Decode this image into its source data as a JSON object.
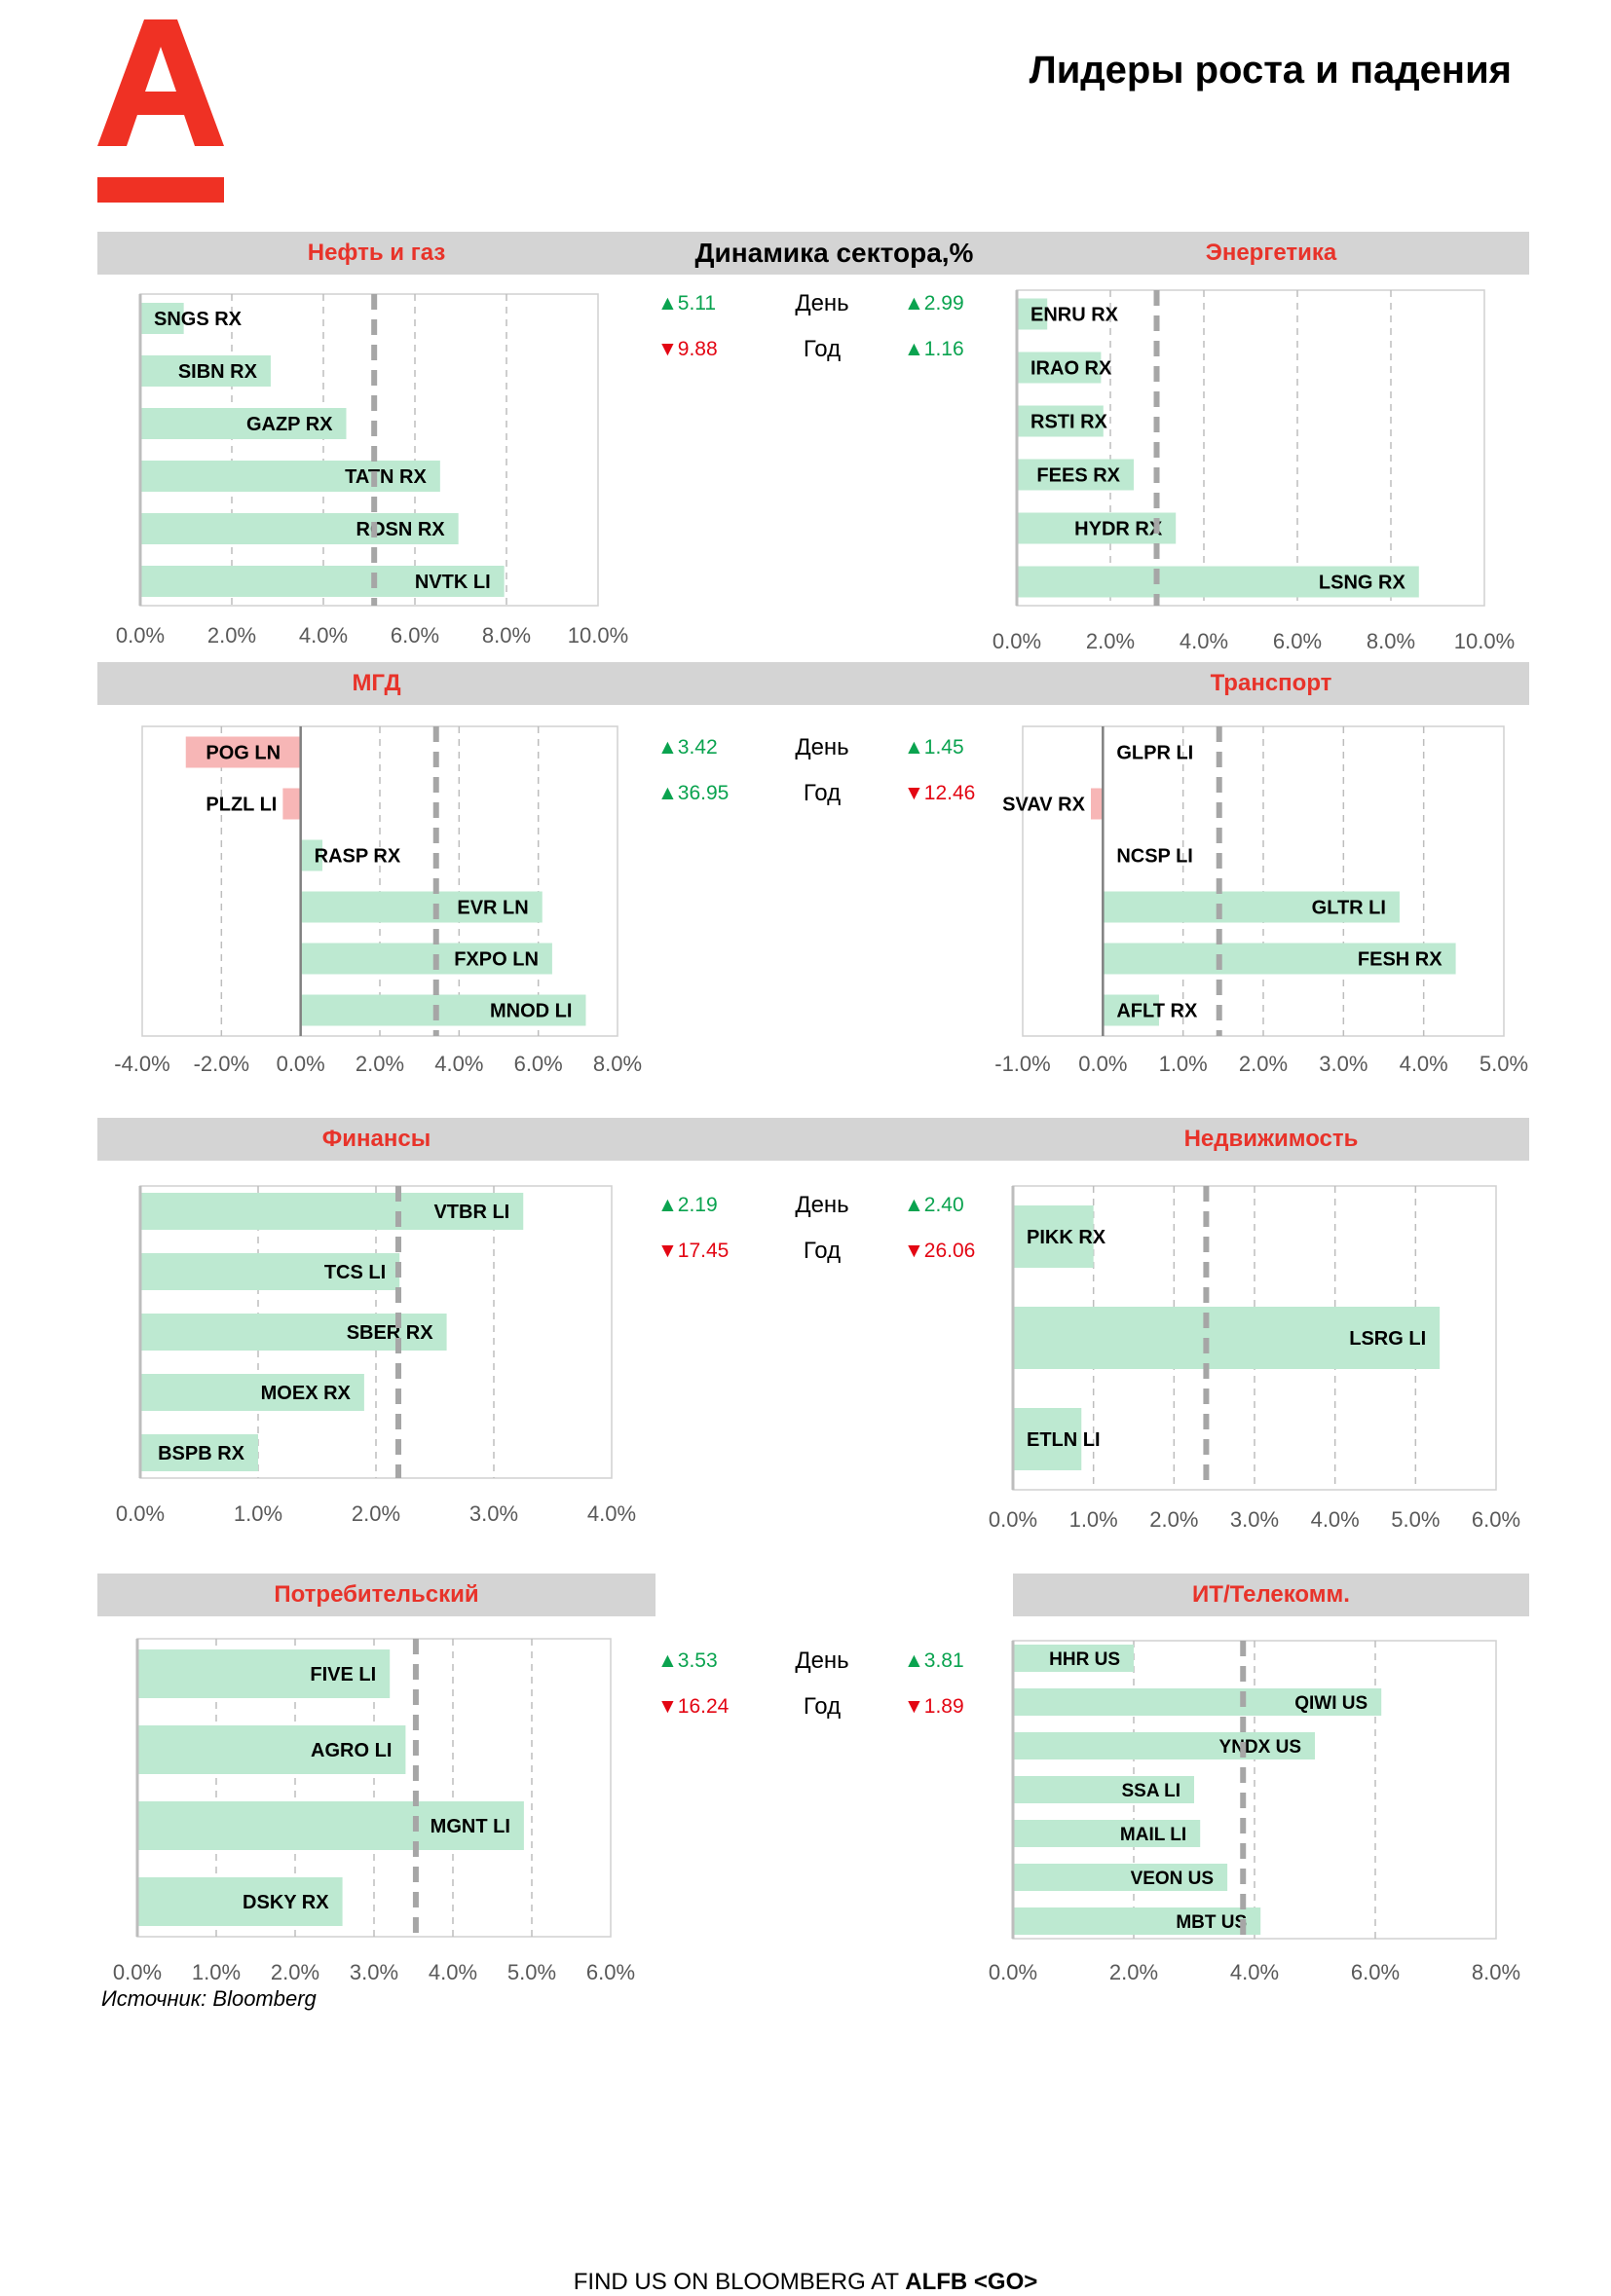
{
  "page_title": "Лидеры роста и падения",
  "dynamics_title": "Динамика сектора,%",
  "source": "Источник: Bloomberg",
  "footer": {
    "prefix": "FIND US ON BLOOMBERG AT ",
    "code": "ALFB <GO>"
  },
  "colors": {
    "brand": "#EF3124",
    "positive_bar": "#bde9d1",
    "negative_bar": "#f7b6b6",
    "up": "#0aa34f",
    "down": "#e30613",
    "band": "#d4d4d4"
  },
  "rows": [
    {
      "dynamics": {
        "day_label": "День",
        "year_label": "Год",
        "left_day": {
          "dir": "up",
          "value": "5.11"
        },
        "left_year": {
          "dir": "down",
          "value": "9.88"
        },
        "right_day": {
          "dir": "up",
          "value": "2.99"
        },
        "right_year": {
          "dir": "up",
          "value": "1.16"
        }
      }
    },
    {
      "dynamics": {
        "day_label": "День",
        "year_label": "Год",
        "left_day": {
          "dir": "up",
          "value": "3.42"
        },
        "left_year": {
          "dir": "up",
          "value": "36.95"
        },
        "right_day": {
          "dir": "up",
          "value": "1.45"
        },
        "right_year": {
          "dir": "down",
          "value": "12.46"
        }
      }
    },
    {
      "dynamics": {
        "day_label": "День",
        "year_label": "Год",
        "left_day": {
          "dir": "up",
          "value": "2.19"
        },
        "left_year": {
          "dir": "down",
          "value": "17.45"
        },
        "right_day": {
          "dir": "up",
          "value": "2.40"
        },
        "right_year": {
          "dir": "down",
          "value": "26.06"
        }
      }
    },
    {
      "dynamics": {
        "day_label": "День",
        "year_label": "Год",
        "left_day": {
          "dir": "up",
          "value": "3.53"
        },
        "left_year": {
          "dir": "down",
          "value": "16.24"
        },
        "right_day": {
          "dir": "up",
          "value": "3.81"
        },
        "right_year": {
          "dir": "down",
          "value": "1.89"
        }
      }
    }
  ],
  "chart_data": [
    {
      "type": "bar",
      "orientation": "horizontal",
      "title": "Нефть и газ",
      "categories": [
        "SNGS RX",
        "SIBN RX",
        "GAZP RX",
        "TATN RX",
        "ROSN RX",
        "NVTK LI"
      ],
      "values": [
        0.95,
        2.85,
        4.5,
        6.55,
        6.95,
        7.95
      ],
      "xlim": [
        0,
        10
      ],
      "ticks": [
        0,
        2,
        4,
        6,
        8,
        10
      ],
      "tick_labels": [
        "0.0%",
        "2.0%",
        "4.0%",
        "6.0%",
        "8.0%",
        "10.0%"
      ],
      "reference": 5.11,
      "grid": true
    },
    {
      "type": "bar",
      "orientation": "horizontal",
      "title": "Энергетика",
      "categories": [
        "ENRU RX",
        "IRAO RX",
        "RSTI RX",
        "FEES RX",
        "HYDR RX",
        "LSNG RX"
      ],
      "values": [
        0.65,
        1.8,
        1.85,
        2.5,
        3.4,
        8.6
      ],
      "xlim": [
        0,
        10
      ],
      "ticks": [
        0,
        2,
        4,
        6,
        8,
        10
      ],
      "tick_labels": [
        "0.0%",
        "2.0%",
        "4.0%",
        "6.0%",
        "8.0%",
        "10.0%"
      ],
      "reference": 2.99,
      "grid": true
    },
    {
      "type": "bar",
      "orientation": "horizontal",
      "title": "МГД",
      "categories": [
        "POG LN",
        "PLZL LI",
        "RASP RX",
        "EVR LN",
        "FXPO LN",
        "MNOD LI"
      ],
      "values": [
        -2.9,
        -0.45,
        0.55,
        6.1,
        6.35,
        7.2
      ],
      "xlim": [
        -4,
        8
      ],
      "ticks": [
        -4,
        -2,
        0,
        2,
        4,
        6,
        8
      ],
      "tick_labels": [
        "-4.0%",
        "-2.0%",
        "0.0%",
        "2.0%",
        "4.0%",
        "6.0%",
        "8.0%"
      ],
      "reference": 3.42,
      "grid": true
    },
    {
      "type": "bar",
      "orientation": "horizontal",
      "title": "Транспорт",
      "categories": [
        "GLPR LI",
        "SVAV RX",
        "NCSP LI",
        "GLTR LI",
        "FESH RX",
        "AFLT RX"
      ],
      "values": [
        0,
        -0.15,
        0,
        3.7,
        4.4,
        0.7
      ],
      "xlim": [
        -1,
        5
      ],
      "ticks": [
        -1,
        0,
        1,
        2,
        3,
        4,
        5
      ],
      "tick_labels": [
        "-1.0%",
        "0.0%",
        "1.0%",
        "2.0%",
        "3.0%",
        "4.0%",
        "5.0%"
      ],
      "reference": 1.45,
      "grid": true
    },
    {
      "type": "bar",
      "orientation": "horizontal",
      "title": "Финансы",
      "categories": [
        "VTBR LI",
        "TCS LI",
        "SBER RX",
        "MOEX RX",
        "BSPB RX"
      ],
      "values": [
        3.25,
        2.2,
        2.6,
        1.9,
        1.0
      ],
      "xlim": [
        0,
        4
      ],
      "ticks": [
        0,
        1,
        2,
        3,
        4
      ],
      "tick_labels": [
        "0.0%",
        "1.0%",
        "2.0%",
        "3.0%",
        "4.0%"
      ],
      "reference": 2.19,
      "grid": true
    },
    {
      "type": "bar",
      "orientation": "horizontal",
      "title": "Недвижимость",
      "categories": [
        "PIKK RX",
        "LSRG LI",
        "ETLN LI"
      ],
      "values": [
        1.0,
        5.3,
        0.85
      ],
      "xlim": [
        0,
        6
      ],
      "ticks": [
        0,
        1,
        2,
        3,
        4,
        5,
        6
      ],
      "tick_labels": [
        "0.0%",
        "1.0%",
        "2.0%",
        "3.0%",
        "4.0%",
        "5.0%",
        "6.0%"
      ],
      "reference": 2.4,
      "grid": true
    },
    {
      "type": "bar",
      "orientation": "horizontal",
      "title": "Потребительский",
      "categories": [
        "FIVE LI",
        "AGRO LI",
        "MGNT LI",
        "DSKY RX"
      ],
      "values": [
        3.2,
        3.4,
        4.9,
        2.6
      ],
      "xlim": [
        0,
        6
      ],
      "ticks": [
        0,
        1,
        2,
        3,
        4,
        5,
        6
      ],
      "tick_labels": [
        "0.0%",
        "1.0%",
        "2.0%",
        "3.0%",
        "4.0%",
        "5.0%",
        "6.0%"
      ],
      "reference": 3.53,
      "grid": true
    },
    {
      "type": "bar",
      "orientation": "horizontal",
      "title": "ИТ/Телекомм.",
      "categories": [
        "HHR US",
        "QIWI US",
        "YNDX US",
        "SSA LI",
        "MAIL LI",
        "VEON US",
        "MBT US"
      ],
      "values": [
        2.0,
        6.1,
        5.0,
        3.0,
        3.1,
        3.55,
        4.1
      ],
      "xlim": [
        0,
        8
      ],
      "ticks": [
        0,
        2,
        4,
        6,
        8
      ],
      "tick_labels": [
        "0.0%",
        "2.0%",
        "4.0%",
        "6.0%",
        "8.0%"
      ],
      "reference": 3.81,
      "grid": true
    }
  ]
}
